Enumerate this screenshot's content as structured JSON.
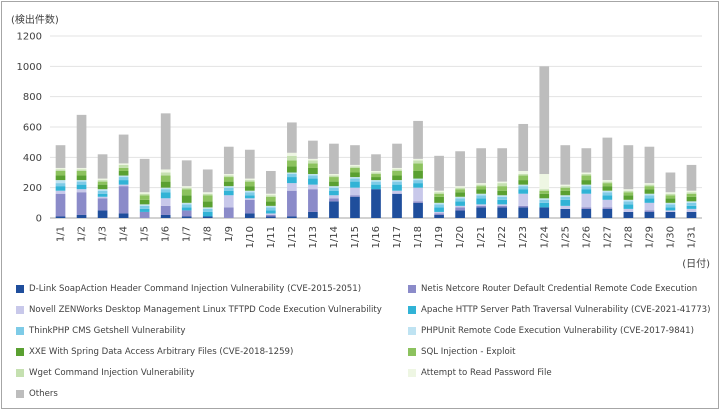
{
  "colors": {
    "D-Link": "#1f4e9c",
    "Netis": "#8b8bc9",
    "Novell": "#c8c8ea",
    "Apache": "#31b3d6",
    "ThinkPHP": "#7ecbe7",
    "PHPUnit": "#bfe3f2",
    "XXE": "#5aa031",
    "SQL": "#8cc25e",
    "Wget": "#c5e0b0",
    "Password": "#eef6e3",
    "Others": "#bdbdbd"
  },
  "chart_data": {
    "type": "bar",
    "stacked": true,
    "ylabel": "(検出件数)",
    "xlabel": "(日付)",
    "ylim": [
      0,
      1200
    ],
    "yticks": [
      0,
      200,
      400,
      600,
      800,
      1000,
      1200
    ],
    "grid": true,
    "legend_position": "bottom",
    "categories": [
      "1/1",
      "1/2",
      "1/3",
      "1/4",
      "1/5",
      "1/6",
      "1/7",
      "1/8",
      "1/9",
      "1/10",
      "1/11",
      "1/12",
      "1/13",
      "1/14",
      "1/15",
      "1/16",
      "1/17",
      "1/18",
      "1/19",
      "1/20",
      "1/21",
      "1/22",
      "1/23",
      "1/24",
      "1/25",
      "1/26",
      "1/27",
      "1/28",
      "1/29",
      "1/30",
      "1/31"
    ],
    "series": [
      {
        "name": "D-Link SoapAction Header Command Injection Vulnerability (CVE-2015-2051)",
        "key": "D-Link",
        "values": [
          10,
          20,
          50,
          30,
          0,
          20,
          10,
          10,
          0,
          30,
          10,
          10,
          40,
          110,
          140,
          190,
          160,
          100,
          20,
          50,
          70,
          70,
          70,
          70,
          60,
          60,
          60,
          40,
          40,
          40,
          40
        ]
      },
      {
        "name": "Netis Netcore Router Default Credential Remote Code Execution",
        "key": "Netis",
        "values": [
          150,
          150,
          80,
          180,
          40,
          60,
          40,
          0,
          70,
          90,
          10,
          170,
          150,
          20,
          10,
          0,
          0,
          10,
          10,
          20,
          10,
          10,
          10,
          0,
          0,
          10,
          10,
          0,
          10,
          0,
          0
        ]
      },
      {
        "name": "Novell ZENWorks Desktop Management Linux TFTPD Code Execution Vulnerability",
        "key": "Novell",
        "values": [
          20,
          20,
          10,
          10,
          0,
          50,
          0,
          0,
          80,
          10,
          10,
          50,
          30,
          20,
          50,
          0,
          20,
          90,
          10,
          10,
          10,
          10,
          80,
          0,
          20,
          90,
          50,
          20,
          50,
          10,
          20
        ]
      },
      {
        "name": "Apache HTTP Server Path Traversal Vulnerability (CVE-2021-41773)",
        "key": "Apache",
        "values": [
          30,
          30,
          20,
          30,
          20,
          40,
          20,
          30,
          30,
          20,
          20,
          40,
          40,
          30,
          40,
          30,
          40,
          30,
          30,
          30,
          40,
          30,
          30,
          30,
          40,
          30,
          30,
          30,
          30,
          20,
          20
        ]
      },
      {
        "name": "ThinkPHP CMS Getshell Vulnerability",
        "key": "ThinkPHP",
        "values": [
          20,
          20,
          20,
          20,
          20,
          20,
          20,
          20,
          20,
          20,
          20,
          20,
          20,
          20,
          20,
          20,
          20,
          20,
          20,
          20,
          20,
          20,
          20,
          20,
          20,
          20,
          20,
          20,
          20,
          20,
          20
        ]
      },
      {
        "name": "PHPUnit Remote Code Execution Vulnerability (CVE-2017-9841)",
        "key": "PHPUnit",
        "values": [
          20,
          10,
          10,
          10,
          10,
          10,
          10,
          10,
          10,
          10,
          10,
          10,
          10,
          10,
          10,
          10,
          10,
          10,
          10,
          10,
          10,
          10,
          10,
          10,
          10,
          10,
          10,
          10,
          10,
          10,
          10
        ]
      },
      {
        "name": "XXE With Spring Data Access Arbitrary Files (CVE-2018-1259)",
        "key": "XXE",
        "values": [
          30,
          30,
          30,
          30,
          30,
          40,
          50,
          40,
          30,
          30,
          30,
          40,
          40,
          30,
          30,
          20,
          30,
          50,
          40,
          30,
          30,
          30,
          30,
          30,
          30,
          30,
          30,
          30,
          30,
          30,
          30
        ]
      },
      {
        "name": "SQL Injection - Exploit",
        "key": "SQL",
        "values": [
          30,
          30,
          20,
          20,
          30,
          40,
          40,
          40,
          30,
          30,
          30,
          40,
          30,
          30,
          30,
          20,
          30,
          50,
          20,
          20,
          20,
          30,
          30,
          20,
          20,
          30,
          20,
          20,
          20,
          20,
          20
        ]
      },
      {
        "name": "Wget Command Injection Vulnerability",
        "key": "Wget",
        "values": [
          10,
          10,
          10,
          20,
          10,
          20,
          10,
          10,
          10,
          10,
          10,
          30,
          20,
          10,
          10,
          10,
          10,
          20,
          10,
          10,
          10,
          20,
          10,
          10,
          10,
          10,
          10,
          10,
          10,
          10,
          10
        ]
      },
      {
        "name": "Attempt to Read Password File",
        "key": "Password",
        "values": [
          10,
          10,
          10,
          10,
          10,
          20,
          10,
          10,
          10,
          10,
          10,
          20,
          10,
          10,
          10,
          10,
          10,
          10,
          10,
          10,
          10,
          10,
          20,
          100,
          10,
          10,
          10,
          10,
          10,
          10,
          10
        ]
      },
      {
        "name": "Others",
        "key": "Others",
        "values": [
          150,
          350,
          160,
          190,
          220,
          370,
          170,
          150,
          180,
          190,
          150,
          200,
          120,
          200,
          130,
          110,
          160,
          250,
          230,
          230,
          230,
          220,
          310,
          710,
          260,
          160,
          280,
          290,
          240,
          130,
          170
        ]
      }
    ]
  }
}
